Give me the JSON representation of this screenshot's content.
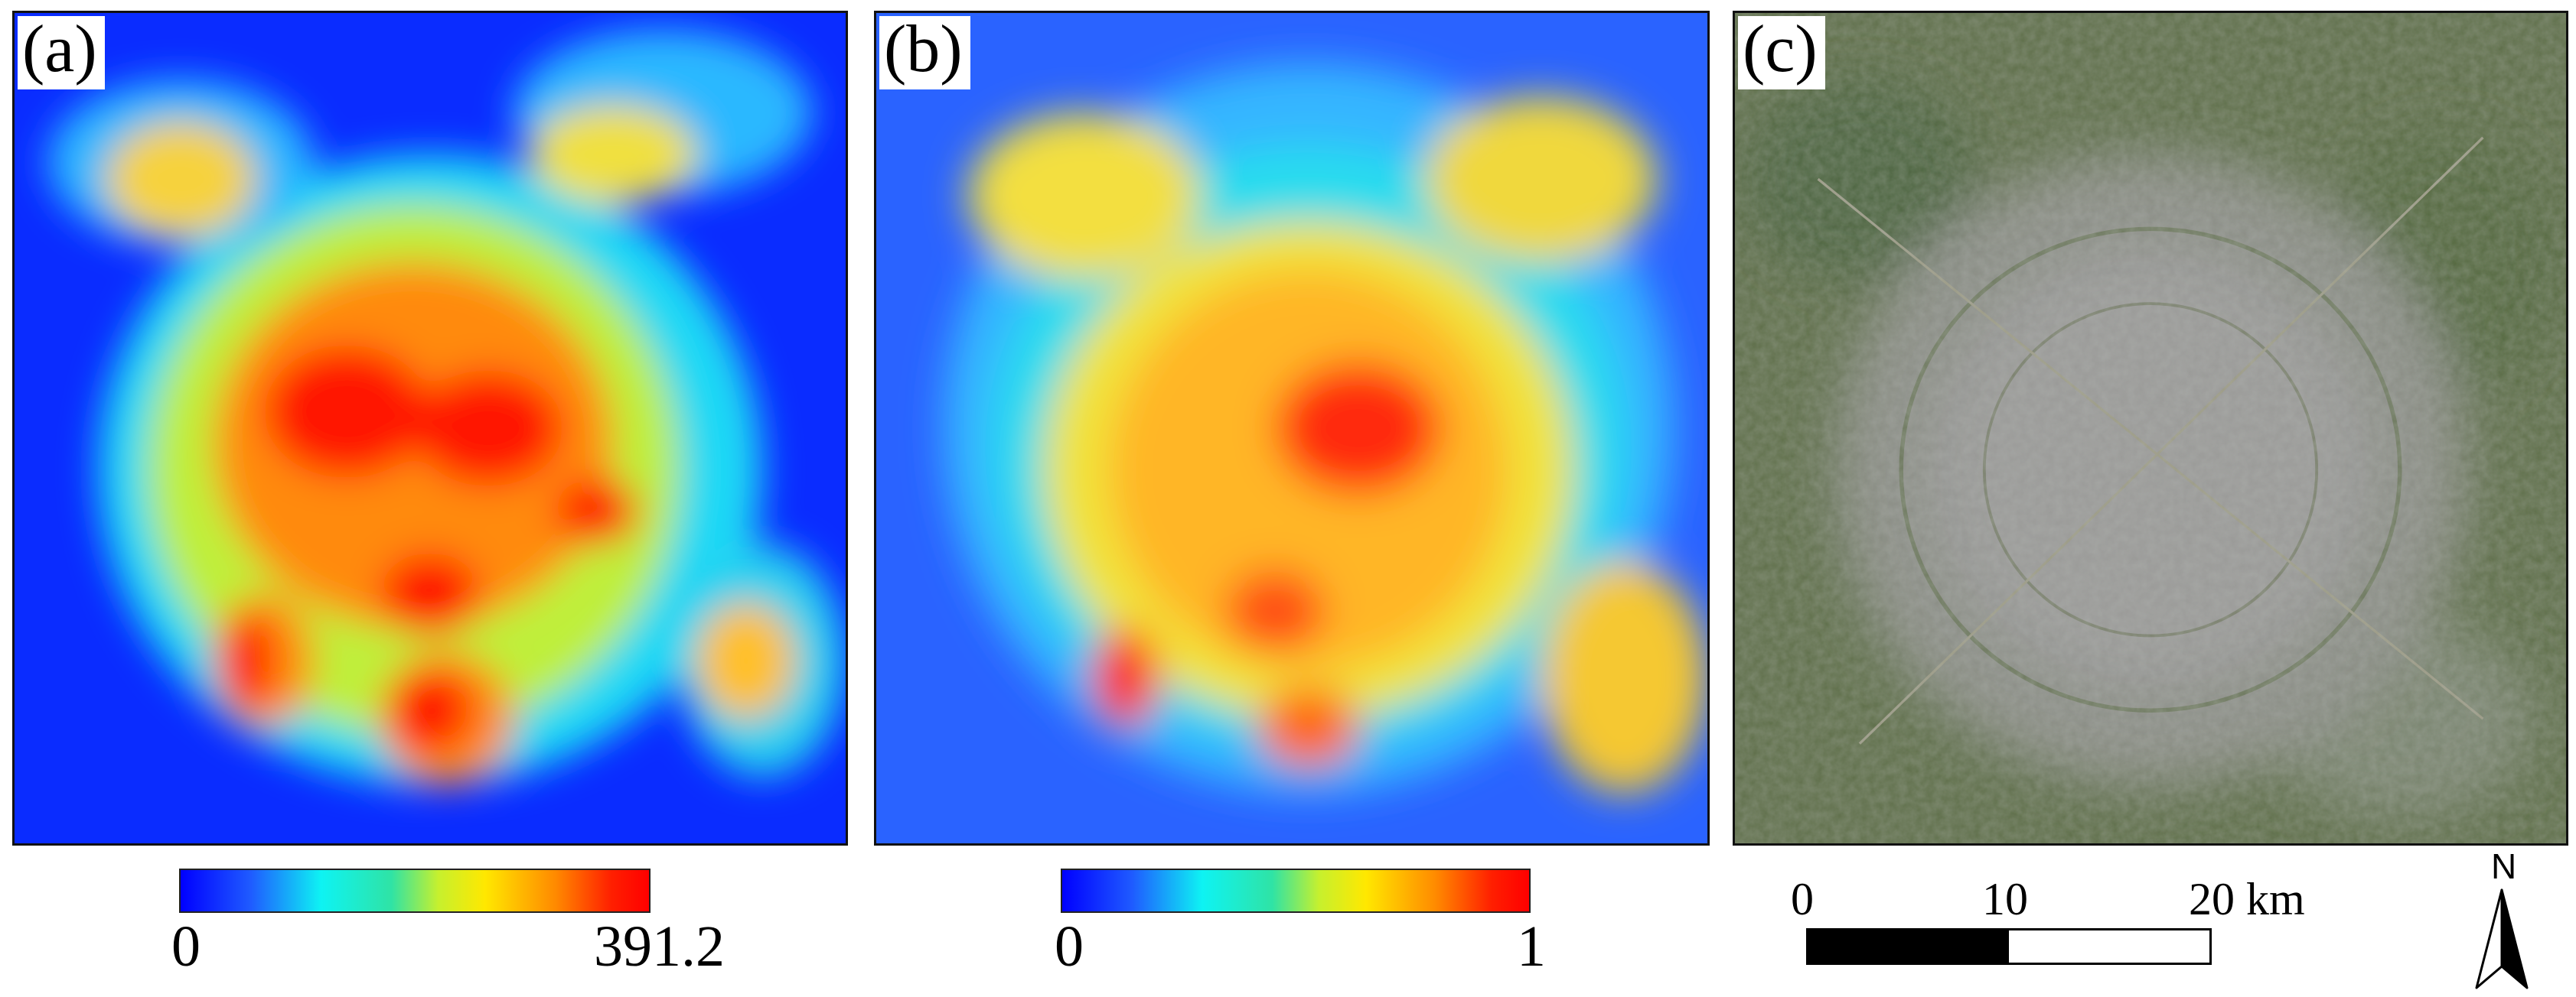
{
  "panels": [
    {
      "label": "(a)",
      "colorbar": {
        "min_label": "0",
        "max_label": "391.2",
        "min": 0,
        "max": 391.2
      }
    },
    {
      "label": "(b)",
      "colorbar": {
        "min_label": "0",
        "max_label": "1",
        "min": 0,
        "max": 1
      }
    },
    {
      "label": "(c)"
    }
  ],
  "scalebar": {
    "ticks": [
      "0",
      "10",
      "20 km"
    ]
  },
  "north": {
    "label": "N"
  },
  "colors": {
    "low": "#0000ff",
    "mid": "#ffe800",
    "high": "#ff0000"
  },
  "icons": [
    "north-arrow-icon"
  ]
}
